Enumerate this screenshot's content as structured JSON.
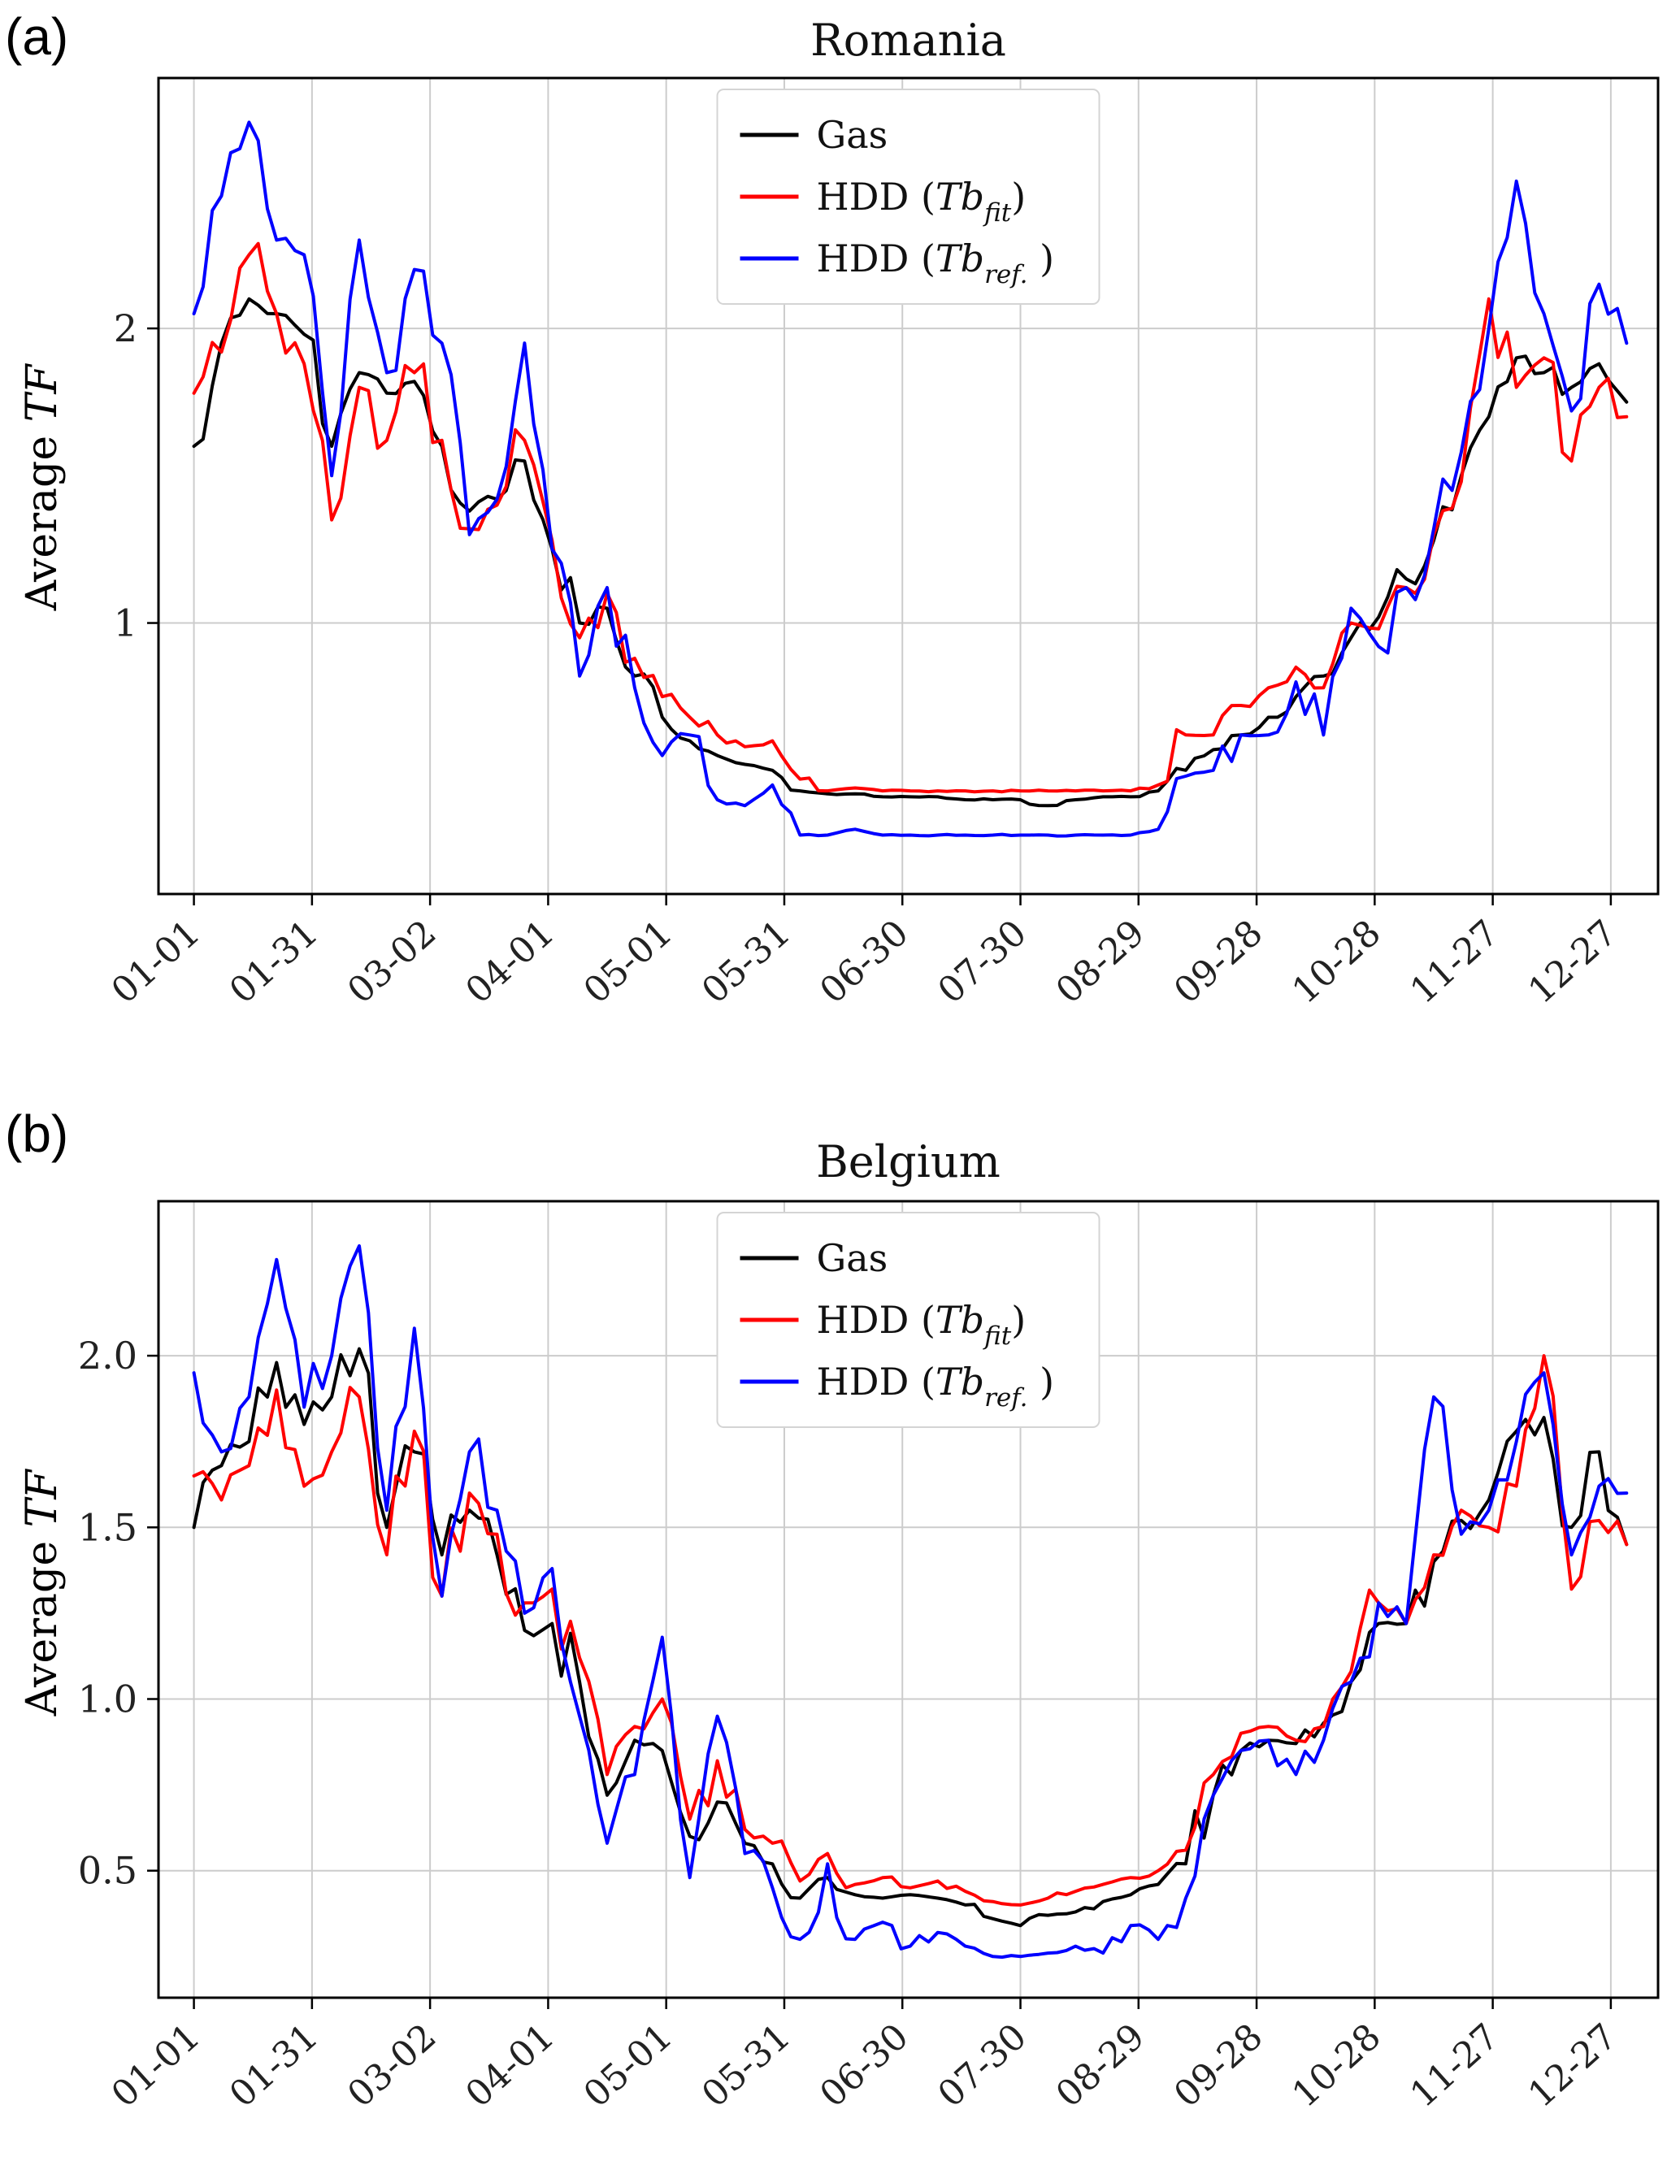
{
  "panels": [
    {
      "label": "(a)",
      "title": "Romania",
      "ylabel": {
        "pre": "Average ",
        "it": "TF"
      }
    },
    {
      "label": "(b)",
      "title": "Belgium",
      "ylabel": {
        "pre": "Average ",
        "it": "TF"
      }
    }
  ],
  "colors": {
    "gas": "#000000",
    "hdd_fit": "#ff0000",
    "hdd_ref": "#0000ff",
    "grid": "#cccccc",
    "axis": "#000000",
    "legend_border": "#d4d4d4"
  },
  "chart_data": [
    {
      "type": "line",
      "title": "Romania",
      "xlabel": "",
      "ylabel": "Average TF",
      "grid": true,
      "legend_position": "upper center",
      "x_tick_days": [
        1,
        31,
        61,
        91,
        121,
        151,
        181,
        211,
        241,
        271,
        301,
        331,
        361
      ],
      "x_tick_labels": [
        "01-01",
        "01-31",
        "03-02",
        "04-01",
        "05-01",
        "05-31",
        "06-30",
        "07-30",
        "08-29",
        "09-28",
        "10-28",
        "11-27",
        "12-27"
      ],
      "ylim": [
        0.08,
        2.85
      ],
      "yticks": [
        1,
        2
      ],
      "ytick_labels": [
        "1",
        "2"
      ],
      "x": [
        1,
        8,
        15,
        22,
        29,
        36,
        43,
        50,
        57,
        64,
        71,
        78,
        85,
        92,
        99,
        106,
        113,
        120,
        127,
        134,
        141,
        148,
        155,
        162,
        169,
        176,
        183,
        190,
        197,
        204,
        211,
        218,
        225,
        232,
        239,
        246,
        253,
        260,
        267,
        274,
        281,
        288,
        295,
        302,
        309,
        316,
        323,
        330,
        337,
        344,
        351,
        358,
        365
      ],
      "series": [
        {
          "name": "Gas",
          "color": "#000000",
          "rich": [
            [
              "t",
              "Gas"
            ]
          ],
          "values": [
            1.6,
            1.95,
            2.1,
            2.05,
            1.98,
            1.6,
            1.85,
            1.78,
            1.82,
            1.6,
            1.38,
            1.42,
            1.55,
            1.25,
            1.0,
            1.05,
            0.82,
            0.68,
            0.6,
            0.55,
            0.52,
            0.5,
            0.43,
            0.42,
            0.42,
            0.41,
            0.41,
            0.41,
            0.4,
            0.4,
            0.4,
            0.38,
            0.4,
            0.41,
            0.41,
            0.43,
            0.5,
            0.57,
            0.62,
            0.68,
            0.75,
            0.82,
            0.95,
            1.02,
            1.15,
            1.28,
            1.5,
            1.7,
            1.9,
            1.85,
            1.8,
            1.88,
            1.75
          ]
        },
        {
          "name": "HDD (Tb_fit)",
          "color": "#ff0000",
          "rich": [
            [
              "t",
              "HDD ("
            ],
            [
              "i",
              "Tb"
            ],
            [
              "s",
              "fit"
            ],
            [
              "t",
              ")"
            ]
          ],
          "values": [
            1.78,
            1.92,
            2.25,
            2.05,
            1.88,
            1.35,
            1.8,
            1.62,
            1.85,
            1.62,
            1.32,
            1.4,
            1.62,
            1.28,
            0.95,
            1.1,
            0.88,
            0.75,
            0.68,
            0.62,
            0.58,
            0.6,
            0.47,
            0.43,
            0.44,
            0.43,
            0.43,
            0.43,
            0.43,
            0.43,
            0.43,
            0.43,
            0.43,
            0.43,
            0.43,
            0.45,
            0.62,
            0.62,
            0.72,
            0.78,
            0.85,
            0.78,
            1.0,
            0.98,
            1.12,
            1.3,
            1.48,
            2.1,
            1.8,
            1.9,
            1.55,
            1.8,
            1.7
          ]
        },
        {
          "name": "HDD (Tb_ref.)",
          "color": "#0000ff",
          "rich": [
            [
              "t",
              "HDD ("
            ],
            [
              "i",
              "Tb"
            ],
            [
              "s",
              "ref."
            ],
            [
              "t",
              " )"
            ]
          ],
          "values": [
            2.05,
            2.45,
            2.7,
            2.3,
            2.25,
            1.5,
            2.3,
            1.85,
            2.2,
            1.95,
            1.3,
            1.42,
            1.95,
            1.25,
            0.82,
            1.12,
            0.78,
            0.55,
            0.62,
            0.4,
            0.38,
            0.45,
            0.28,
            0.28,
            0.3,
            0.28,
            0.28,
            0.28,
            0.28,
            0.28,
            0.28,
            0.28,
            0.28,
            0.28,
            0.28,
            0.3,
            0.48,
            0.5,
            0.62,
            0.62,
            0.8,
            0.62,
            1.05,
            0.92,
            1.12,
            1.32,
            1.58,
            2.0,
            2.5,
            2.05,
            1.72,
            2.15,
            1.95
          ]
        }
      ]
    },
    {
      "type": "line",
      "title": "Belgium",
      "xlabel": "",
      "ylabel": "Average TF",
      "grid": true,
      "legend_position": "upper center",
      "x_tick_days": [
        1,
        31,
        61,
        91,
        121,
        151,
        181,
        211,
        241,
        271,
        301,
        331,
        361
      ],
      "x_tick_labels": [
        "01-01",
        "01-31",
        "03-02",
        "04-01",
        "05-01",
        "05-31",
        "06-30",
        "07-30",
        "08-29",
        "09-28",
        "10-28",
        "11-27",
        "12-27"
      ],
      "ylim": [
        0.13,
        2.45
      ],
      "yticks": [
        0.5,
        1.0,
        1.5,
        2.0
      ],
      "ytick_labels": [
        "0.5",
        "1.0",
        "1.5",
        "2.0"
      ],
      "x": [
        1,
        8,
        15,
        22,
        29,
        36,
        43,
        50,
        57,
        64,
        71,
        78,
        85,
        92,
        99,
        106,
        113,
        120,
        127,
        134,
        141,
        148,
        155,
        162,
        169,
        176,
        183,
        190,
        197,
        204,
        211,
        218,
        225,
        232,
        239,
        246,
        253,
        260,
        267,
        274,
        281,
        288,
        295,
        302,
        309,
        316,
        323,
        330,
        337,
        344,
        351,
        358,
        365
      ],
      "series": [
        {
          "name": "Gas",
          "color": "#000000",
          "rich": [
            [
              "t",
              "Gas"
            ]
          ],
          "values": [
            1.5,
            1.68,
            1.75,
            1.98,
            1.8,
            1.88,
            2.02,
            1.5,
            1.72,
            1.42,
            1.55,
            1.42,
            1.2,
            1.22,
            1.05,
            0.72,
            0.88,
            0.85,
            0.6,
            0.7,
            0.58,
            0.52,
            0.42,
            0.48,
            0.43,
            0.42,
            0.43,
            0.42,
            0.4,
            0.36,
            0.34,
            0.37,
            0.38,
            0.41,
            0.43,
            0.46,
            0.52,
            0.72,
            0.85,
            0.88,
            0.87,
            0.93,
            1.05,
            1.22,
            1.22,
            1.4,
            1.52,
            1.58,
            1.78,
            1.82,
            1.5,
            1.72,
            1.45
          ]
        },
        {
          "name": "HDD (Tb_fit)",
          "color": "#ff0000",
          "rich": [
            [
              "t",
              "HDD ("
            ],
            [
              "i",
              "Tb"
            ],
            [
              "s",
              "fit"
            ],
            [
              "t",
              ")"
            ]
          ],
          "values": [
            1.65,
            1.58,
            1.68,
            1.9,
            1.62,
            1.72,
            1.88,
            1.42,
            1.78,
            1.3,
            1.6,
            1.48,
            1.28,
            1.32,
            1.12,
            0.78,
            0.92,
            1.0,
            0.65,
            0.82,
            0.62,
            0.58,
            0.47,
            0.55,
            0.46,
            0.48,
            0.45,
            0.47,
            0.44,
            0.41,
            0.4,
            0.42,
            0.44,
            0.46,
            0.48,
            0.5,
            0.56,
            0.78,
            0.9,
            0.92,
            0.88,
            0.92,
            1.08,
            1.28,
            1.22,
            1.42,
            1.55,
            1.5,
            1.62,
            2.0,
            1.32,
            1.52,
            1.45
          ]
        },
        {
          "name": "HDD (Tb_ref.)",
          "color": "#0000ff",
          "rich": [
            [
              "t",
              "HDD ("
            ],
            [
              "i",
              "Tb"
            ],
            [
              "s",
              "ref."
            ],
            [
              "t",
              " )"
            ]
          ],
          "values": [
            1.95,
            1.72,
            1.88,
            2.28,
            1.85,
            2.0,
            2.32,
            1.55,
            2.08,
            1.3,
            1.72,
            1.55,
            1.25,
            1.38,
            0.95,
            0.58,
            0.78,
            1.18,
            0.48,
            0.95,
            0.55,
            0.45,
            0.3,
            0.52,
            0.3,
            0.35,
            0.28,
            0.32,
            0.28,
            0.25,
            0.25,
            0.26,
            0.28,
            0.26,
            0.34,
            0.3,
            0.42,
            0.72,
            0.85,
            0.88,
            0.78,
            0.88,
            1.05,
            1.28,
            1.22,
            1.88,
            1.48,
            1.55,
            1.75,
            1.95,
            1.42,
            1.62,
            1.6
          ]
        }
      ]
    }
  ]
}
